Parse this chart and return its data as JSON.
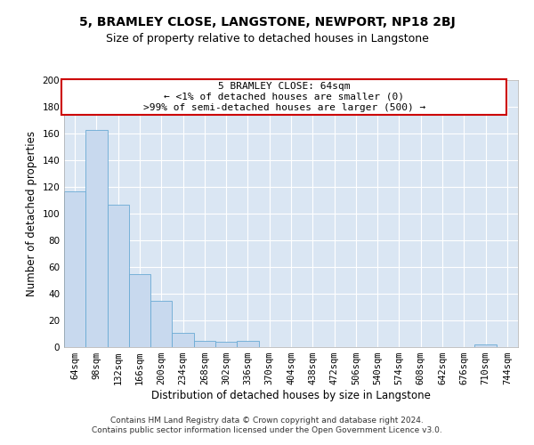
{
  "title": "5, BRAMLEY CLOSE, LANGSTONE, NEWPORT, NP18 2BJ",
  "subtitle": "Size of property relative to detached houses in Langstone",
  "xlabel": "Distribution of detached houses by size in Langstone",
  "ylabel": "Number of detached properties",
  "bar_color": "#c8d9ee",
  "bar_edge_color": "#6aaad4",
  "background_color": "#dae6f3",
  "grid_color": "#ffffff",
  "categories": [
    "64sqm",
    "98sqm",
    "132sqm",
    "166sqm",
    "200sqm",
    "234sqm",
    "268sqm",
    "302sqm",
    "336sqm",
    "370sqm",
    "404sqm",
    "438sqm",
    "472sqm",
    "506sqm",
    "540sqm",
    "574sqm",
    "608sqm",
    "642sqm",
    "676sqm",
    "710sqm",
    "744sqm"
  ],
  "values": [
    117,
    163,
    107,
    55,
    35,
    11,
    5,
    4,
    5,
    0,
    0,
    0,
    0,
    0,
    0,
    0,
    0,
    0,
    0,
    2,
    0
  ],
  "ylim": [
    0,
    200
  ],
  "yticks": [
    0,
    20,
    40,
    60,
    80,
    100,
    120,
    140,
    160,
    180,
    200
  ],
  "annotation_title": "5 BRAMLEY CLOSE: 64sqm",
  "annotation_line1": "← <1% of detached houses are smaller (0)",
  "annotation_line2": ">99% of semi-detached houses are larger (500) →",
  "annotation_box_color": "#ffffff",
  "annotation_box_edge_color": "#cc0000",
  "footer_line1": "Contains HM Land Registry data © Crown copyright and database right 2024.",
  "footer_line2": "Contains public sector information licensed under the Open Government Licence v3.0.",
  "title_fontsize": 10,
  "subtitle_fontsize": 9,
  "axis_label_fontsize": 8.5,
  "tick_fontsize": 7.5,
  "annotation_fontsize": 8,
  "footer_fontsize": 6.5
}
